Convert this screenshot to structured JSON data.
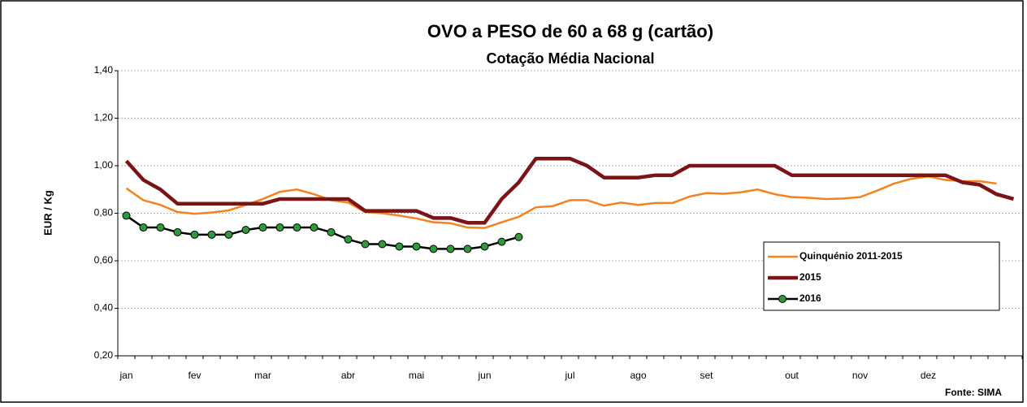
{
  "chart_data": {
    "type": "line",
    "title": "OVO a PESO de 60 a 68 g (cartão)",
    "subtitle": "Cotação Média Nacional",
    "y_label": "EUR / Kg",
    "source": "Fonte: SIMA",
    "categories": [
      "jan",
      null,
      null,
      null,
      "fev",
      null,
      null,
      null,
      "mar",
      null,
      null,
      null,
      null,
      "abr",
      null,
      null,
      null,
      "mai",
      null,
      null,
      null,
      "jun",
      null,
      null,
      null,
      null,
      "jul",
      null,
      null,
      null,
      "ago",
      null,
      null,
      null,
      "set",
      null,
      null,
      null,
      null,
      "out",
      null,
      null,
      null,
      "nov",
      null,
      null,
      null,
      "dez",
      null,
      null,
      null,
      null,
      null
    ],
    "series": [
      {
        "name": "Quinquénio 2011-2015",
        "color": "#f58220",
        "width": 2.5,
        "marker": false,
        "values": [
          0.905,
          0.855,
          0.835,
          0.805,
          0.798,
          0.803,
          0.812,
          0.835,
          0.86,
          0.89,
          0.9,
          0.88,
          0.855,
          0.845,
          0.805,
          0.8,
          0.79,
          0.778,
          0.762,
          0.758,
          0.74,
          0.738,
          0.762,
          0.785,
          0.825,
          0.83,
          0.855,
          0.855,
          0.832,
          0.845,
          0.835,
          0.843,
          0.843,
          0.87,
          0.885,
          0.882,
          0.888,
          0.9,
          0.88,
          0.868,
          0.865,
          0.86,
          0.862,
          0.868,
          0.895,
          0.925,
          0.945,
          0.955,
          0.94,
          0.935,
          0.935,
          0.925,
          null
        ]
      },
      {
        "name": "2015",
        "color": "#7b1416",
        "width": 4.5,
        "marker": false,
        "values": [
          1.02,
          0.94,
          0.9,
          0.84,
          0.84,
          0.84,
          0.84,
          0.84,
          0.84,
          0.86,
          0.86,
          0.86,
          0.86,
          0.86,
          0.81,
          0.81,
          0.81,
          0.81,
          0.78,
          0.78,
          0.76,
          0.76,
          0.86,
          0.93,
          1.03,
          1.03,
          1.03,
          1.0,
          0.95,
          0.95,
          0.95,
          0.96,
          0.96,
          1.0,
          1.0,
          1.0,
          1.0,
          1.0,
          1.0,
          0.96,
          0.96,
          0.96,
          0.96,
          0.96,
          0.96,
          0.96,
          0.96,
          0.96,
          0.96,
          0.93,
          0.92,
          0.88,
          0.86
        ]
      },
      {
        "name": "2016",
        "color": "#000000",
        "marker_color": "#2e9a3c",
        "width": 2.5,
        "marker": true,
        "values": [
          0.79,
          0.74,
          0.74,
          0.72,
          0.71,
          0.71,
          0.71,
          0.73,
          0.74,
          0.74,
          0.74,
          0.74,
          0.72,
          0.69,
          0.67,
          0.67,
          0.66,
          0.66,
          0.65,
          0.65,
          0.65,
          0.66,
          0.68,
          0.7,
          null,
          null,
          null,
          null,
          null,
          null,
          null,
          null,
          null,
          null,
          null,
          null,
          null,
          null,
          null,
          null,
          null,
          null,
          null,
          null,
          null,
          null,
          null,
          null,
          null,
          null,
          null,
          null,
          null
        ]
      }
    ],
    "ylim": [
      0.2,
      1.4
    ],
    "yticks": [
      {
        "value": 0.2,
        "label": "0,20"
      },
      {
        "value": 0.4,
        "label": "0,40"
      },
      {
        "value": 0.6,
        "label": "0,60"
      },
      {
        "value": 0.8,
        "label": "0,80"
      },
      {
        "value": 1.0,
        "label": "1,00"
      },
      {
        "value": 1.2,
        "label": "1,20"
      },
      {
        "value": 1.4,
        "label": "1,40"
      }
    ],
    "grid": true,
    "legend": "right"
  }
}
